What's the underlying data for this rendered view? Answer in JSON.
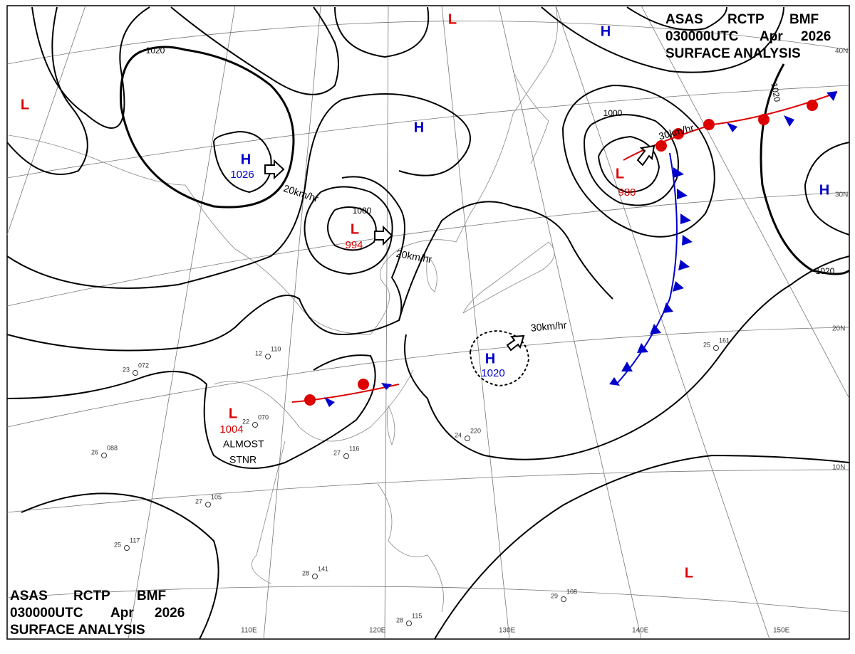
{
  "header": {
    "line1": [
      "ASAS",
      "RCTP",
      "BMF"
    ],
    "line2": [
      "030000UTC",
      "Apr",
      "2026"
    ],
    "line3": "SURFACE  ANALYSIS"
  },
  "centers": [
    {
      "type": "L"
    },
    {
      "type": "H"
    },
    {
      "type": "L"
    },
    {
      "type": "H"
    },
    {
      "type": "H",
      "pressure": 1026
    },
    {
      "type": "L",
      "pressure": 994
    },
    {
      "type": "L",
      "pressure": 980
    },
    {
      "type": "H"
    },
    {
      "type": "H",
      "pressure": 1020
    },
    {
      "type": "L",
      "pressure": 1004
    },
    {
      "type": "L"
    }
  ],
  "isobar_labels": [
    "1020",
    "1000",
    "1000",
    "1020",
    "1020"
  ],
  "movements": [
    "20km/hr",
    "20km/hr",
    "30km/hr",
    "30km/hr"
  ],
  "notes": [
    "ALMOST",
    "STNR"
  ],
  "latitudes": [
    "40N",
    "30N",
    "20N",
    "10N"
  ],
  "longitudes": [
    "110E",
    "120E",
    "130E",
    "140E",
    "150E"
  ],
  "stations": [
    {
      "temp": "26",
      "pres": "088"
    },
    {
      "temp": "23",
      "pres": "072"
    },
    {
      "temp": "12",
      "pres": "110"
    },
    {
      "temp": "22",
      "pres": "070"
    },
    {
      "temp": "27",
      "pres": "116"
    },
    {
      "temp": "24",
      "pres": "220"
    },
    {
      "temp": "25",
      "pres": "161"
    },
    {
      "temp": "28",
      "pres": "115"
    },
    {
      "temp": "29",
      "pres": "108"
    },
    {
      "temp": "27",
      "pres": "105"
    },
    {
      "temp": "28",
      "pres": "141"
    },
    {
      "temp": "25",
      "pres": "117"
    }
  ]
}
